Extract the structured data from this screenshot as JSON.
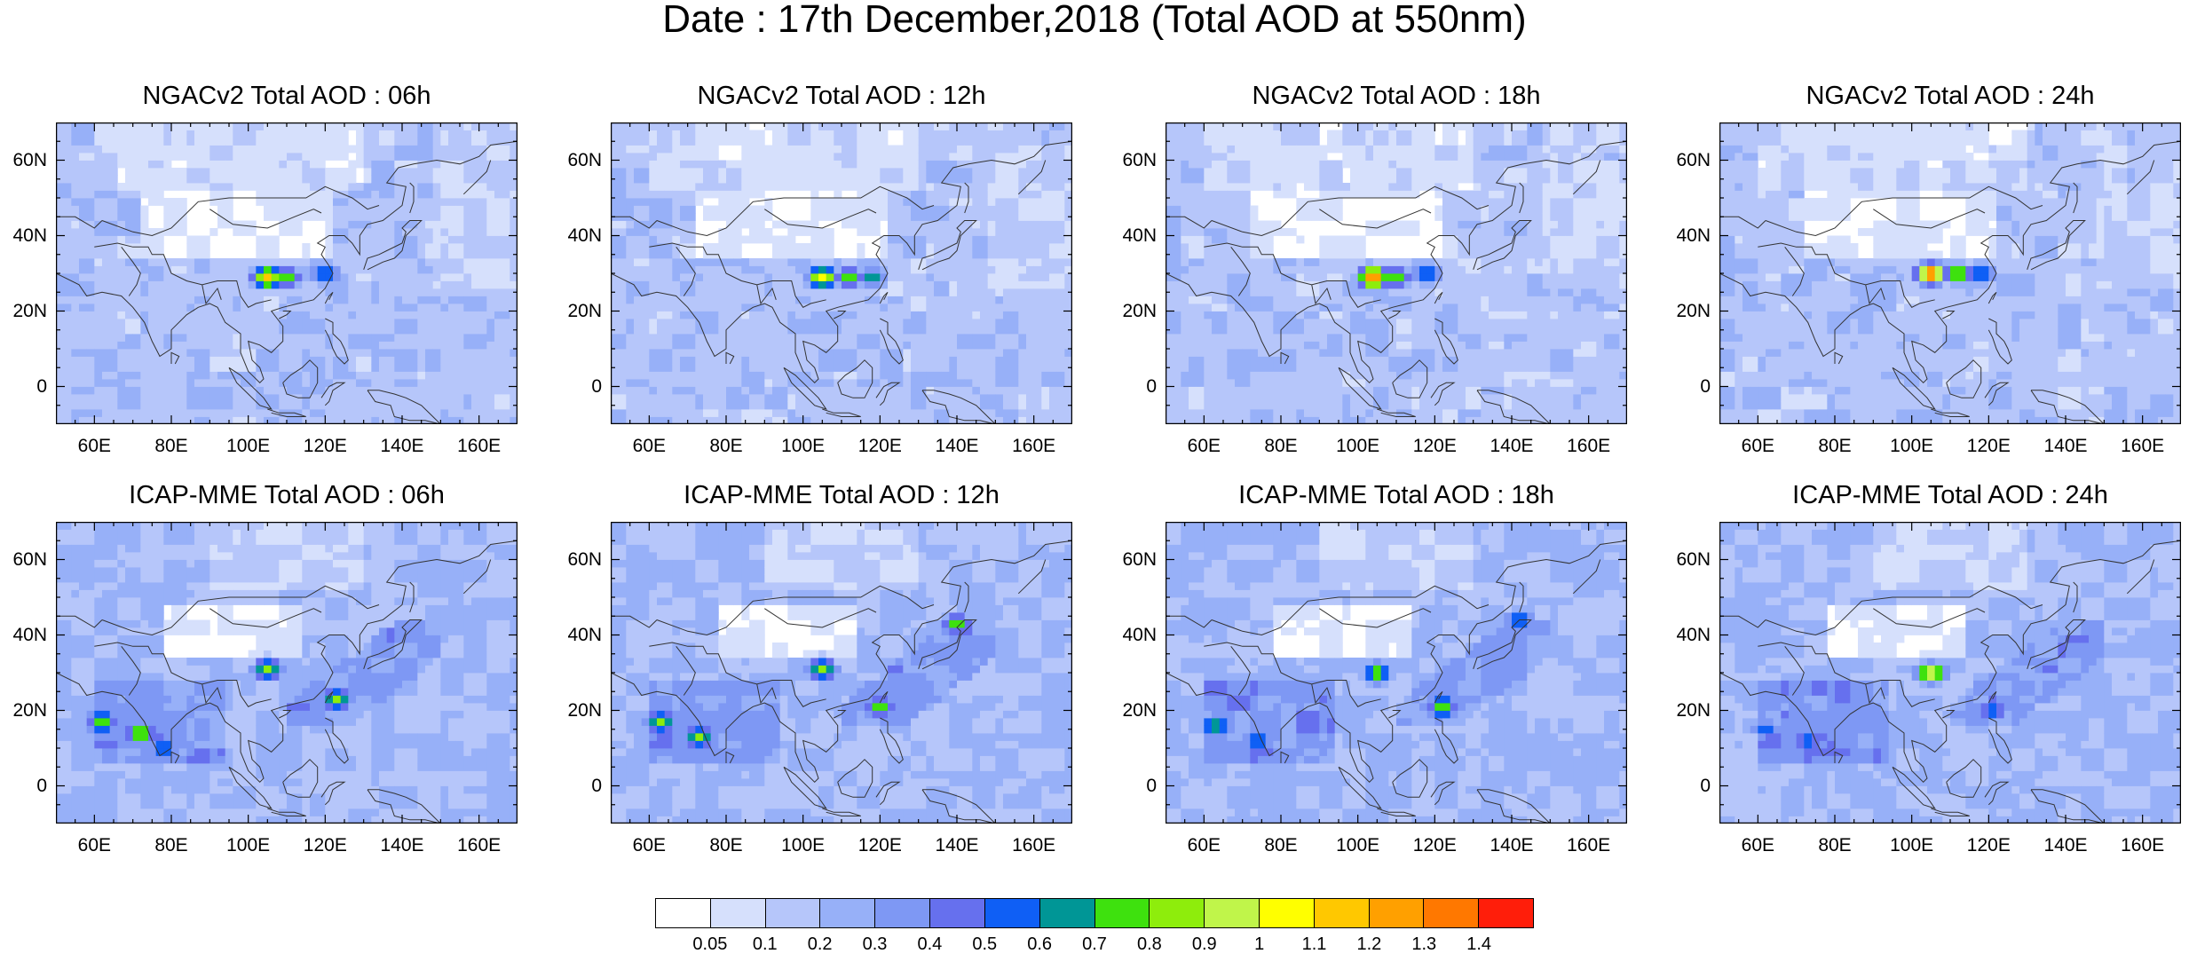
{
  "title": "Date : 17th December,2018 (Total AOD at 550nm)",
  "map_extent": {
    "lon": [
      50,
      170
    ],
    "lat": [
      -10,
      70
    ]
  },
  "lat_ticks": [
    {
      "value": 60,
      "label": "60N"
    },
    {
      "value": 40,
      "label": "40N"
    },
    {
      "value": 20,
      "label": "20N"
    },
    {
      "value": 0,
      "label": "0"
    }
  ],
  "lon_ticks": [
    {
      "value": 60,
      "label": "60E"
    },
    {
      "value": 80,
      "label": "80E"
    },
    {
      "value": 100,
      "label": "100E"
    },
    {
      "value": 120,
      "label": "120E"
    },
    {
      "value": 140,
      "label": "140E"
    },
    {
      "value": 160,
      "label": "160E"
    }
  ],
  "panels": [
    {
      "title": "NGACv2 Total AOD : 06h",
      "model": "NGAC",
      "hotspots": [
        {
          "lon": 105,
          "lat": 29,
          "level": 12
        },
        {
          "lon": 110,
          "lat": 29,
          "level": 8
        },
        {
          "lon": 120,
          "lat": 30,
          "level": 7
        }
      ]
    },
    {
      "title": "NGACv2 Total AOD : 12h",
      "model": "NGAC",
      "hotspots": [
        {
          "lon": 105,
          "lat": 29,
          "level": 11
        },
        {
          "lon": 112,
          "lat": 29,
          "level": 8
        },
        {
          "lon": 118,
          "lat": 29,
          "level": 7
        }
      ]
    },
    {
      "title": "NGACv2 Total AOD : 18h",
      "model": "NGAC",
      "hotspots": [
        {
          "lon": 104,
          "lat": 29,
          "level": 14
        },
        {
          "lon": 110,
          "lat": 29,
          "level": 8
        },
        {
          "lon": 118,
          "lat": 30,
          "level": 7
        }
      ]
    },
    {
      "title": "NGACv2 Total AOD : 24h",
      "model": "NGAC",
      "hotspots": [
        {
          "lon": 105,
          "lat": 30,
          "level": 14
        },
        {
          "lon": 112,
          "lat": 30,
          "level": 9
        },
        {
          "lon": 118,
          "lat": 30,
          "level": 7
        }
      ]
    },
    {
      "title": "ICAP-MME Total AOD : 06h",
      "model": "ICAP",
      "hotspots": [
        {
          "lon": 62,
          "lat": 17,
          "level": 9
        },
        {
          "lon": 72,
          "lat": 14,
          "level": 9
        },
        {
          "lon": 78,
          "lat": 10,
          "level": 7
        },
        {
          "lon": 105,
          "lat": 31,
          "level": 9
        },
        {
          "lon": 123,
          "lat": 23,
          "level": 9
        },
        {
          "lon": 137,
          "lat": 40,
          "level": 6
        }
      ]
    },
    {
      "title": "ICAP-MME Total AOD : 12h",
      "model": "ICAP",
      "hotspots": [
        {
          "lon": 63,
          "lat": 17,
          "level": 9
        },
        {
          "lon": 73,
          "lat": 13,
          "level": 9
        },
        {
          "lon": 105,
          "lat": 31,
          "level": 9
        },
        {
          "lon": 120,
          "lat": 21,
          "level": 8
        },
        {
          "lon": 140,
          "lat": 43,
          "level": 8
        }
      ]
    },
    {
      "title": "ICAP-MME Total AOD : 18h",
      "model": "ICAP",
      "hotspots": [
        {
          "lon": 63,
          "lat": 16,
          "level": 8
        },
        {
          "lon": 74,
          "lat": 12,
          "level": 7
        },
        {
          "lon": 105,
          "lat": 30,
          "level": 9
        },
        {
          "lon": 122,
          "lat": 21,
          "level": 9
        },
        {
          "lon": 142,
          "lat": 44,
          "level": 7
        }
      ]
    },
    {
      "title": "ICAP-MME Total AOD : 24h",
      "model": "ICAP",
      "hotspots": [
        {
          "lon": 62,
          "lat": 15,
          "level": 6
        },
        {
          "lon": 73,
          "lat": 12,
          "level": 7
        },
        {
          "lon": 105,
          "lat": 30,
          "level": 11
        },
        {
          "lon": 121,
          "lat": 20,
          "level": 7
        }
      ]
    }
  ],
  "colorbar": {
    "colors": [
      "#ffffff",
      "#d6e0fc",
      "#b6c6fa",
      "#97b0f8",
      "#7e98f4",
      "#6670ee",
      "#0f5ff5",
      "#009696",
      "#3ee10e",
      "#8eed0c",
      "#c0f54a",
      "#ffff00",
      "#ffc800",
      "#ffa000",
      "#ff7800",
      "#ff1e0a"
    ],
    "labels": [
      "0.05",
      "0.1",
      "0.2",
      "0.3",
      "0.4",
      "0.5",
      "0.6",
      "0.7",
      "0.8",
      "0.9",
      "1",
      "1.1",
      "1.2",
      "1.3",
      "1.4"
    ]
  }
}
